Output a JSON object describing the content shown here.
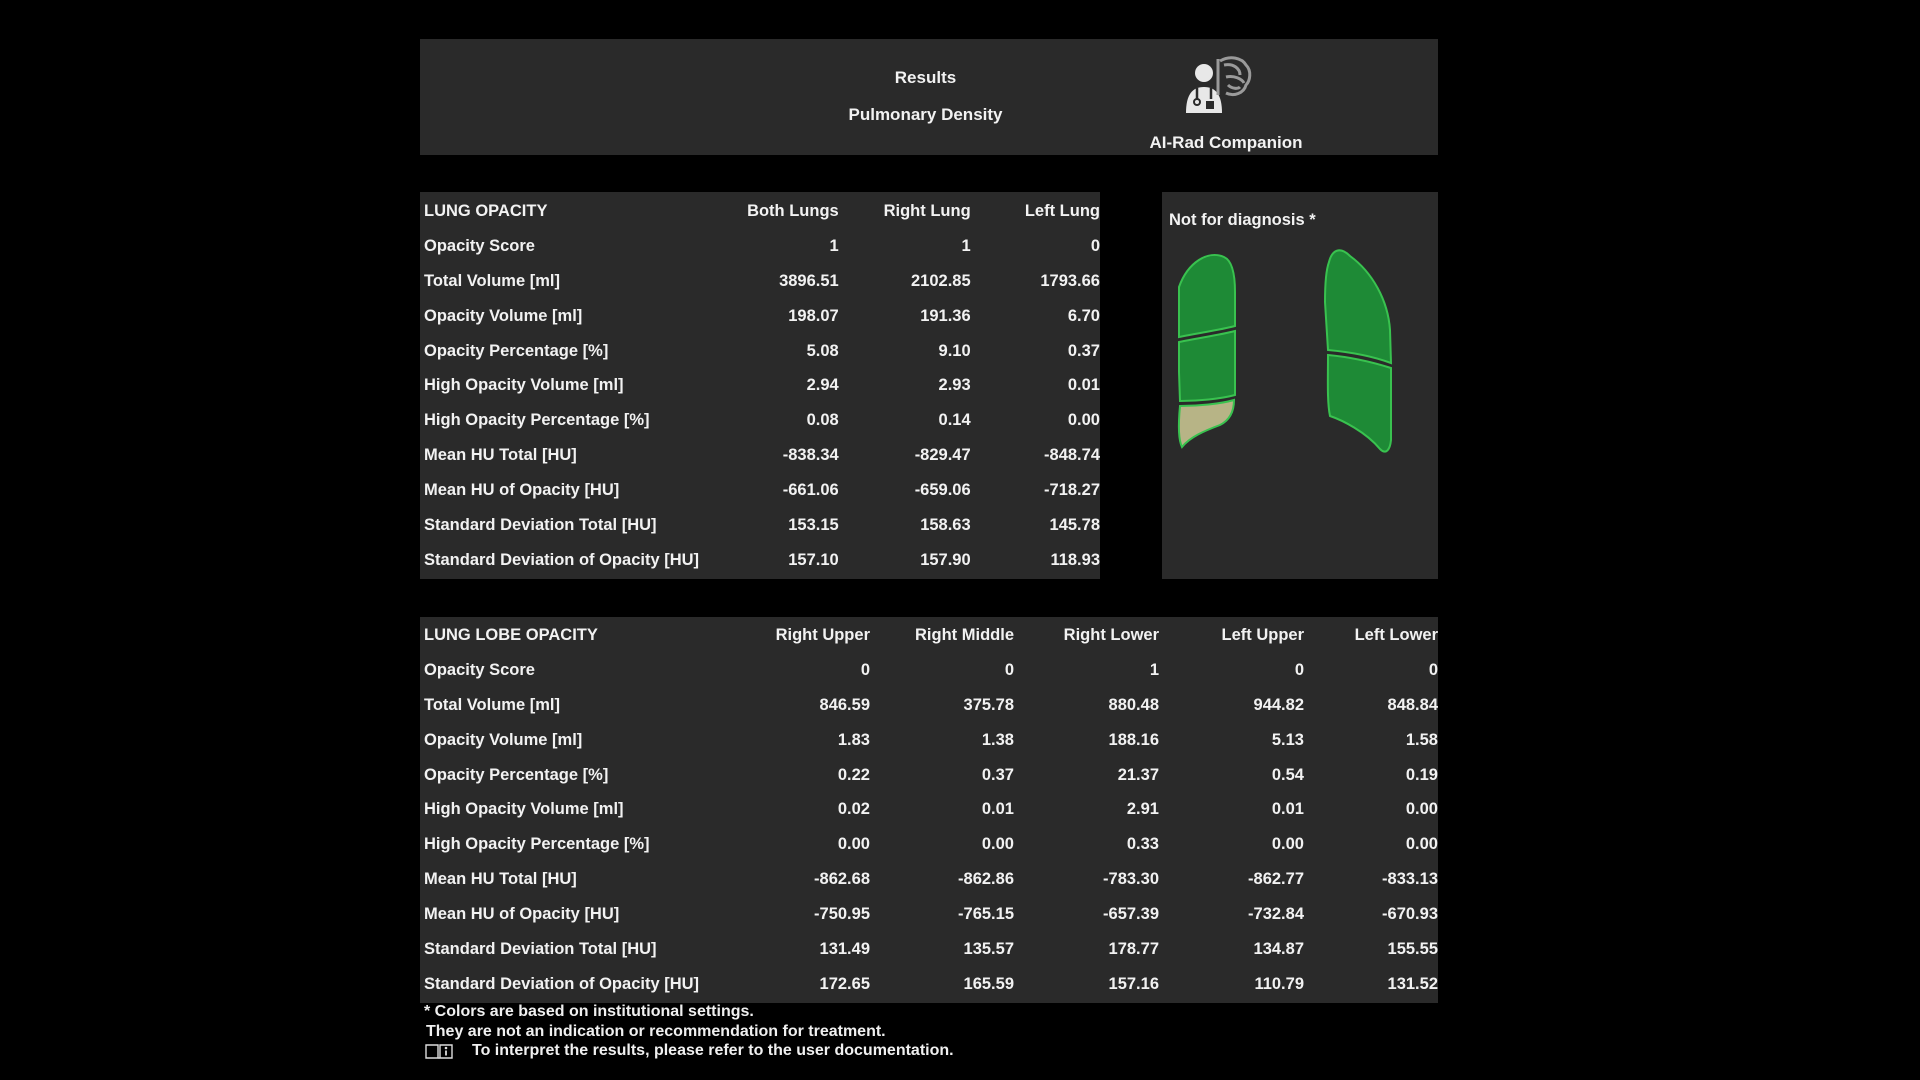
{
  "header": {
    "title": "Results",
    "subtitle": "Pulmonary Density",
    "brand": "AI-Rad Companion",
    "logo_icon": "doctor-brain-icon"
  },
  "lung_opacity": {
    "heading": "LUNG OPACITY",
    "columns": [
      "Both Lungs",
      "Right Lung",
      "Left Lung"
    ],
    "rows": [
      {
        "label": "Opacity Score",
        "values": [
          "1",
          "1",
          "0"
        ]
      },
      {
        "label": "Total Volume [ml]",
        "values": [
          "3896.51",
          "2102.85",
          "1793.66"
        ]
      },
      {
        "label": "Opacity Volume [ml]",
        "values": [
          "198.07",
          "191.36",
          "6.70"
        ]
      },
      {
        "label": "Opacity Percentage [%]",
        "values": [
          "5.08",
          "9.10",
          "0.37"
        ]
      },
      {
        "label": "High Opacity Volume [ml]",
        "values": [
          "2.94",
          "2.93",
          "0.01"
        ]
      },
      {
        "label": "High Opacity Percentage [%]",
        "values": [
          "0.08",
          "0.14",
          "0.00"
        ]
      },
      {
        "label": "Mean HU Total [HU]",
        "values": [
          "-838.34",
          "-829.47",
          "-848.74"
        ]
      },
      {
        "label": "Mean HU of Opacity [HU]",
        "values": [
          "-661.06",
          "-659.06",
          "-718.27"
        ]
      },
      {
        "label": "Standard Deviation Total [HU]",
        "values": [
          "153.15",
          "158.63",
          "145.78"
        ]
      },
      {
        "label": "Standard Deviation of Opacity [HU]",
        "values": [
          "157.10",
          "157.90",
          "118.93"
        ]
      }
    ]
  },
  "diagram": {
    "title": "Not for diagnosis *",
    "colors": {
      "normal": "#1e8a36",
      "elevated": "#b7b486",
      "outline": "#39c24f"
    }
  },
  "lung_lobe_opacity": {
    "heading": "LUNG LOBE OPACITY",
    "columns": [
      "Right Upper",
      "Right Middle",
      "Right Lower",
      "Left Upper",
      "Left Lower"
    ],
    "rows": [
      {
        "label": "Opacity Score",
        "values": [
          "0",
          "0",
          "1",
          "0",
          "0"
        ]
      },
      {
        "label": "Total Volume [ml]",
        "values": [
          "846.59",
          "375.78",
          "880.48",
          "944.82",
          "848.84"
        ]
      },
      {
        "label": "Opacity Volume [ml]",
        "values": [
          "1.83",
          "1.38",
          "188.16",
          "5.13",
          "1.58"
        ]
      },
      {
        "label": "Opacity Percentage [%]",
        "values": [
          "0.22",
          "0.37",
          "21.37",
          "0.54",
          "0.19"
        ]
      },
      {
        "label": "High Opacity Volume [ml]",
        "values": [
          "0.02",
          "0.01",
          "2.91",
          "0.01",
          "0.00"
        ]
      },
      {
        "label": "High Opacity Percentage [%]",
        "values": [
          "0.00",
          "0.00",
          "0.33",
          "0.00",
          "0.00"
        ]
      },
      {
        "label": "Mean HU Total [HU]",
        "values": [
          "-862.68",
          "-862.86",
          "-783.30",
          "-862.77",
          "-833.13"
        ]
      },
      {
        "label": "Mean HU of Opacity [HU]",
        "values": [
          "-750.95",
          "-765.15",
          "-657.39",
          "-732.84",
          "-670.93"
        ]
      },
      {
        "label": "Standard Deviation Total [HU]",
        "values": [
          "131.49",
          "135.57",
          "178.77",
          "134.87",
          "155.55"
        ]
      },
      {
        "label": "Standard Deviation of Opacity [HU]",
        "values": [
          "172.65",
          "165.59",
          "157.16",
          "110.79",
          "131.52"
        ]
      }
    ]
  },
  "footer": {
    "line1": "* Colors are based on institutional settings.",
    "line2": "They are not an indication or recommendation for treatment.",
    "line3": "To interpret the results, please refer to the user documentation.",
    "info_icon": "user-manual-info-icon"
  }
}
